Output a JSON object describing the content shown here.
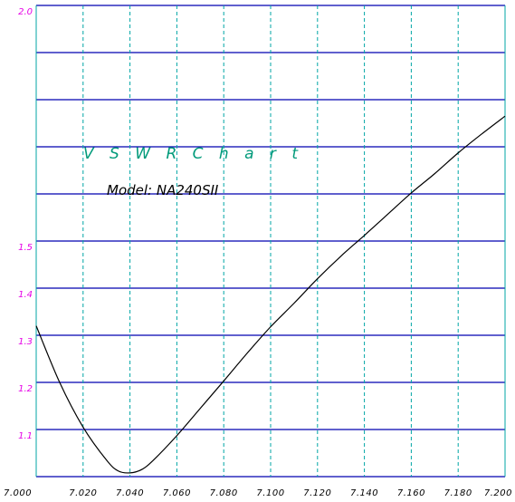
{
  "chart_data": {
    "type": "line",
    "title": "V S W R   C h a r t",
    "subtitle": "Model: NA240SII",
    "xlim": [
      7.0,
      7.2
    ],
    "ylim": [
      1.0,
      2.0
    ],
    "x_ticks": [
      "7.000",
      "7.020",
      "7.040",
      "7.060",
      "7.080",
      "7.100",
      "7.120",
      "7.140",
      "7.160",
      "7.180",
      "7.200"
    ],
    "y_tick_labels": [
      {
        "value": 2.0,
        "label": "2.0"
      },
      {
        "value": 1.5,
        "label": "1.5"
      },
      {
        "value": 1.4,
        "label": "1.4"
      },
      {
        "value": 1.3,
        "label": "1.3"
      },
      {
        "value": 1.2,
        "label": "1.2"
      },
      {
        "value": 1.1,
        "label": "1.1"
      }
    ],
    "grid": true,
    "series": [
      {
        "color": "#000000",
        "x": [
          7.0,
          7.01,
          7.02,
          7.03,
          7.035,
          7.04,
          7.045,
          7.05,
          7.06,
          7.07,
          7.08,
          7.09,
          7.1,
          7.11,
          7.12,
          7.13,
          7.14,
          7.15,
          7.16,
          7.17,
          7.18,
          7.19,
          7.2
        ],
        "y": [
          1.32,
          1.2,
          1.105,
          1.035,
          1.012,
          1.008,
          1.015,
          1.035,
          1.087,
          1.145,
          1.203,
          1.262,
          1.318,
          1.368,
          1.42,
          1.468,
          1.512,
          1.557,
          1.602,
          1.643,
          1.687,
          1.727,
          1.765
        ]
      }
    ]
  },
  "colors": {
    "vertical_grid": "#00a6a6",
    "horizontal_grid": "#0000b0",
    "y_labels": "#e600e6",
    "title": "#009a7a",
    "line": "#000000"
  }
}
